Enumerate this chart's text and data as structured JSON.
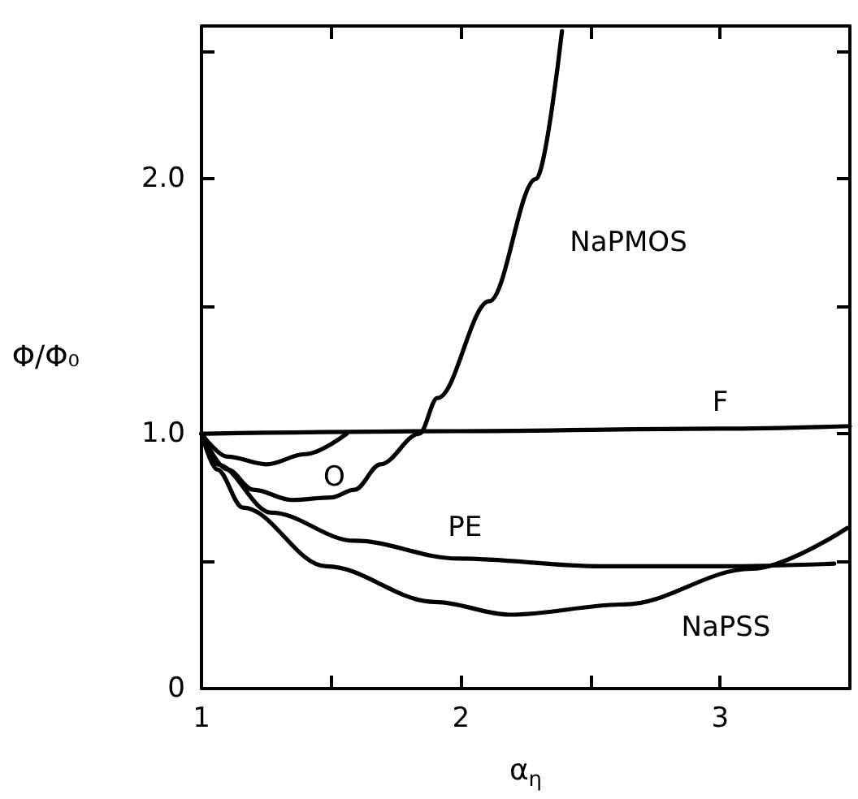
{
  "chart_data": {
    "type": "line",
    "xlabel": "α$_{η}$",
    "ylabel": "Φ/Φ₀",
    "xlim": [
      1,
      3.5
    ],
    "ylim": [
      0,
      2.6
    ],
    "xticks": [
      1,
      {
        "value": 1.5,
        "label": null
      },
      2,
      {
        "value": 2.5,
        "label": null
      },
      3,
      {
        "value": 3.5,
        "label": null
      }
    ],
    "yticks": [
      0,
      {
        "value": 0.5,
        "label": null
      },
      {
        "value": 1,
        "label": "1.0"
      },
      {
        "value": 1.5,
        "label": null
      },
      {
        "value": 2,
        "label": "2.0"
      },
      {
        "value": 2.5,
        "label": null
      }
    ],
    "grid": false,
    "legend": false,
    "marker": "none",
    "line_style": "solid",
    "series": [
      {
        "name": "F",
        "color": "#000000",
        "x": [
          1,
          2,
          3,
          3.5
        ],
        "values": [
          1.0,
          1.01,
          1.02,
          1.03
        ]
      },
      {
        "name": "O",
        "color": "#000000",
        "x": [
          1,
          1.1,
          1.25,
          1.4,
          1.56
        ],
        "values": [
          1.0,
          0.91,
          0.88,
          0.92,
          1.0
        ]
      },
      {
        "name": "NaPMOS",
        "color": "#000000",
        "x": [
          1,
          1.1,
          1.2,
          1.35,
          1.5,
          1.59,
          1.69,
          1.84,
          1.91,
          2.11,
          2.29,
          2.39
        ],
        "values": [
          1.0,
          0.86,
          0.78,
          0.74,
          0.75,
          0.78,
          0.88,
          1.0,
          1.14,
          1.52,
          2.0,
          2.58
        ]
      },
      {
        "name": "PE",
        "color": "#000000",
        "x": [
          1,
          1.06,
          1.27,
          1.59,
          1.99,
          2.54,
          3.0,
          3.44
        ],
        "values": [
          1.0,
          0.88,
          0.69,
          0.58,
          0.51,
          0.48,
          0.48,
          0.49
        ]
      },
      {
        "name": "NaPSS",
        "color": "#000000",
        "x": [
          1,
          1.06,
          1.16,
          1.48,
          1.9,
          2.19,
          2.63,
          3.12,
          3.49
        ],
        "values": [
          1.0,
          0.86,
          0.71,
          0.48,
          0.34,
          0.29,
          0.33,
          0.47,
          0.63
        ]
      }
    ]
  }
}
